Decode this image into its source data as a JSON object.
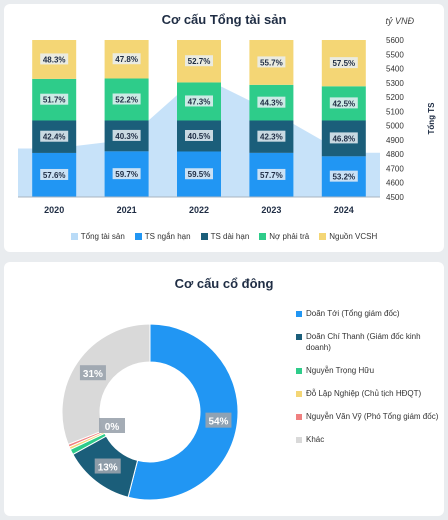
{
  "colors": {
    "short_term": "#2196f3",
    "long_term": "#1b5e7a",
    "liabilities": "#2ecc8a",
    "equity": "#f4d675",
    "total_area": "#b9dbf7",
    "other": "#d9d9d9",
    "pink": "#f08080"
  },
  "chart_data": [
    {
      "type": "bar",
      "title": "Cơ cấu Tổng tài sản",
      "unit": "tỷ VNĐ",
      "ylabel": "Tổng TS",
      "categories": [
        "2020",
        "2021",
        "2022",
        "2023",
        "2024"
      ],
      "series": [
        {
          "name": "TS ngắn hạn",
          "position": "lower",
          "values": [
            57.6,
            59.7,
            59.5,
            57.7,
            53.2
          ],
          "labels": [
            "57.6%",
            "59.7%",
            "59.5%",
            "57.7%",
            "53.2%"
          ]
        },
        {
          "name": "TS dài hạn",
          "position": "lower",
          "values": [
            42.4,
            40.3,
            40.5,
            42.3,
            46.8
          ],
          "labels": [
            "42.4%",
            "40.3%",
            "40.5%",
            "42.3%",
            "46.8%"
          ]
        },
        {
          "name": "Nợ phải trả",
          "position": "upper",
          "values": [
            51.7,
            52.2,
            47.3,
            44.3,
            42.5
          ],
          "labels": [
            "51.7%",
            "52.2%",
            "47.3%",
            "44.3%",
            "42.5%"
          ]
        },
        {
          "name": "Nguồn VCSH",
          "position": "upper",
          "values": [
            48.3,
            47.8,
            52.7,
            55.7,
            57.5
          ],
          "labels": [
            "48.3%",
            "47.8%",
            "52.7%",
            "55.7%",
            "57.5%"
          ]
        }
      ],
      "total_series": {
        "name": "Tổng tài sản",
        "values": [
          4840,
          4900,
          5350,
          5100,
          4810
        ]
      },
      "y2_ticks": [
        "4500",
        "4600",
        "4700",
        "4800",
        "4900",
        "5000",
        "5100",
        "5200",
        "5300",
        "5400",
        "5500",
        "5600"
      ],
      "ylim": [
        4500,
        5600
      ],
      "legend": [
        "Tổng tài sản",
        "TS ngắn hạn",
        "TS dài hạn",
        "Nợ phải trả",
        "Nguồn VCSH"
      ]
    },
    {
      "type": "pie",
      "title": "Cơ cấu cổ đông",
      "slices": [
        {
          "name": "Doãn Tới (Tổng giám đốc)",
          "value": 54,
          "label": "54%"
        },
        {
          "name": "Doãn Chí Thanh (Giám đốc kinh doanh)",
          "value": 13,
          "label": "13%"
        },
        {
          "name": "Nguyễn Trọng Hữu",
          "value": 1,
          "label": ""
        },
        {
          "name": "Đỗ Lập Nghiệp (Chủ tịch HĐQT)",
          "value": 0.5,
          "label": "0%"
        },
        {
          "name": "Nguyễn Văn Vỹ (Phó Tổng giám đốc)",
          "value": 0.5,
          "label": ""
        },
        {
          "name": "Khác",
          "value": 31,
          "label": "31%"
        }
      ]
    }
  ]
}
